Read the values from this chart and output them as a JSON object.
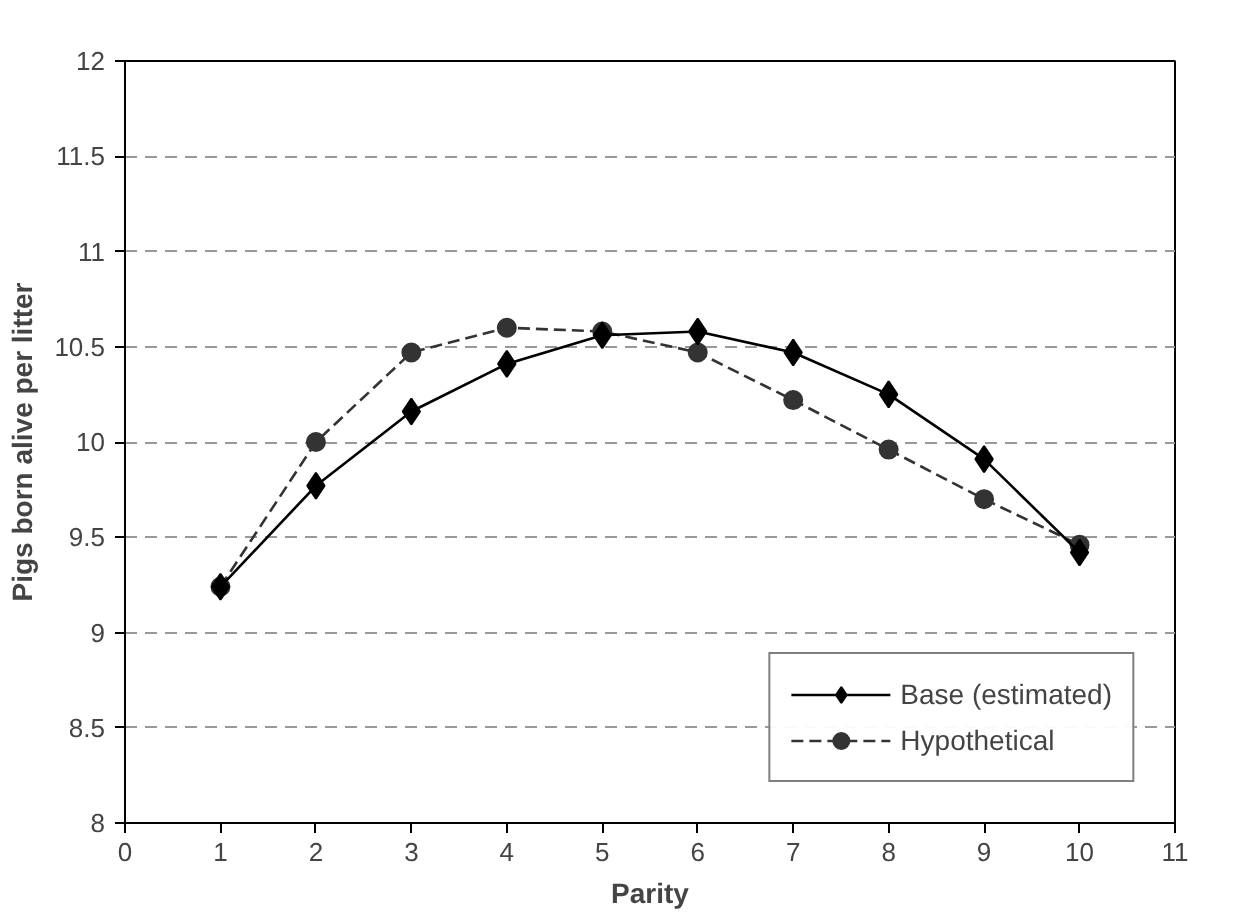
{
  "chart_data": {
    "type": "line",
    "xlabel": "Parity",
    "ylabel": "Pigs born alive per litter",
    "x": [
      1,
      2,
      3,
      4,
      5,
      6,
      7,
      8,
      9,
      10
    ],
    "series": [
      {
        "name": "Base (estimated)",
        "color": "#000000",
        "marker": "diamond",
        "line_style": "solid",
        "values": [
          9.24,
          9.77,
          10.16,
          10.41,
          10.56,
          10.58,
          10.47,
          10.25,
          9.91,
          9.42
        ]
      },
      {
        "name": "Hypothetical",
        "color": "#333333",
        "marker": "circle",
        "line_style": "dashed",
        "values": [
          9.24,
          10.0,
          10.47,
          10.6,
          10.58,
          10.47,
          10.22,
          9.96,
          9.7,
          9.46
        ]
      }
    ],
    "xlim": [
      0,
      11
    ],
    "xticks": [
      0,
      1,
      2,
      3,
      4,
      5,
      6,
      7,
      8,
      9,
      10,
      11
    ],
    "ylim": [
      8,
      12
    ],
    "yticks": [
      8,
      8.5,
      9,
      9.5,
      10,
      10.5,
      11,
      11.5,
      12
    ],
    "grid": "y",
    "legend": "bottom right"
  }
}
